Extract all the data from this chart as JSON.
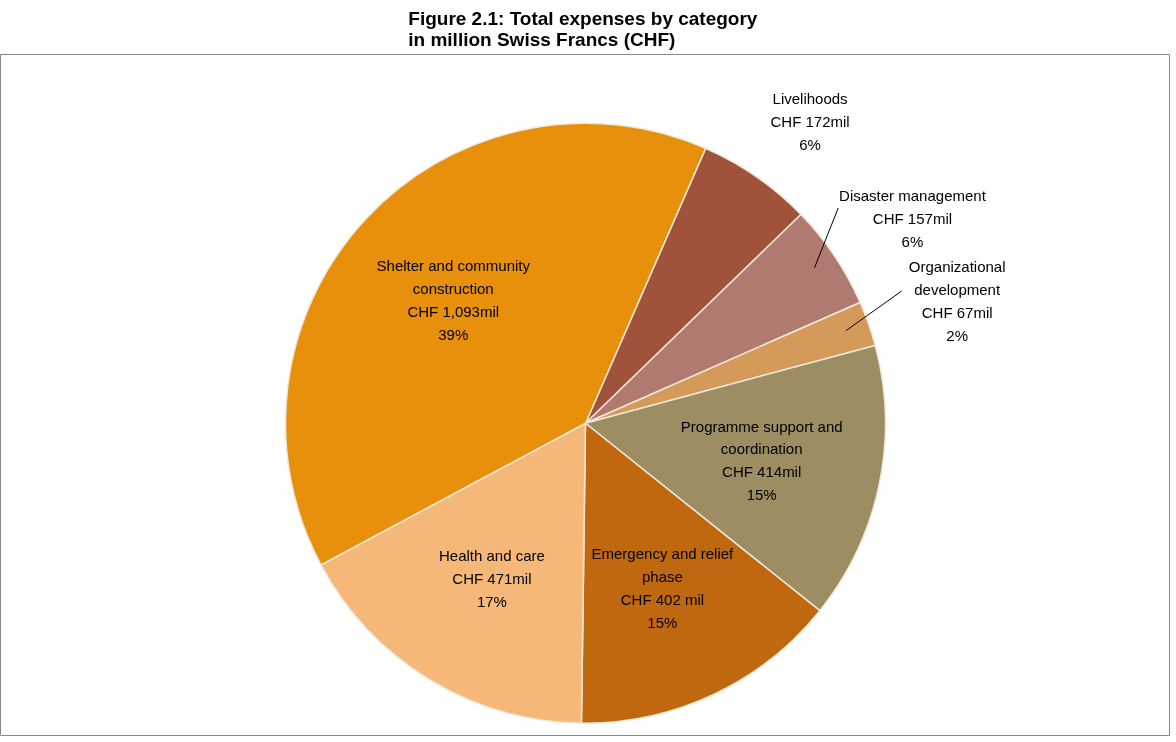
{
  "chart_data": {
    "type": "pie",
    "title": "Figure 2.1:  Total expenses by category\nin million Swiss Francs (CHF)",
    "categories": [
      "Livelihoods",
      "Disaster management",
      "Organizational\ndevelopment",
      "Programme support and\ncoordination",
      "Emergency and relief\nphase",
      "Health and care",
      "Shelter and community\nconstruction"
    ],
    "values": [
      172,
      157,
      67,
      414,
      402,
      471,
      1093
    ],
    "value_labels": [
      "CHF 172mil\n6%",
      "CHF 157mil\n6%",
      "CHF 67mil\n2%",
      "CHF 414mil\n15%",
      "CHF 402 mil\n15%",
      "CHF 471mil\n17%",
      "CHF 1,093mil\n39%"
    ],
    "colors": [
      "#a0523a",
      "#b07a70",
      "#d49a5a",
      "#9c8e62",
      "#c0680f",
      "#f5b878",
      "#e8900c"
    ]
  }
}
